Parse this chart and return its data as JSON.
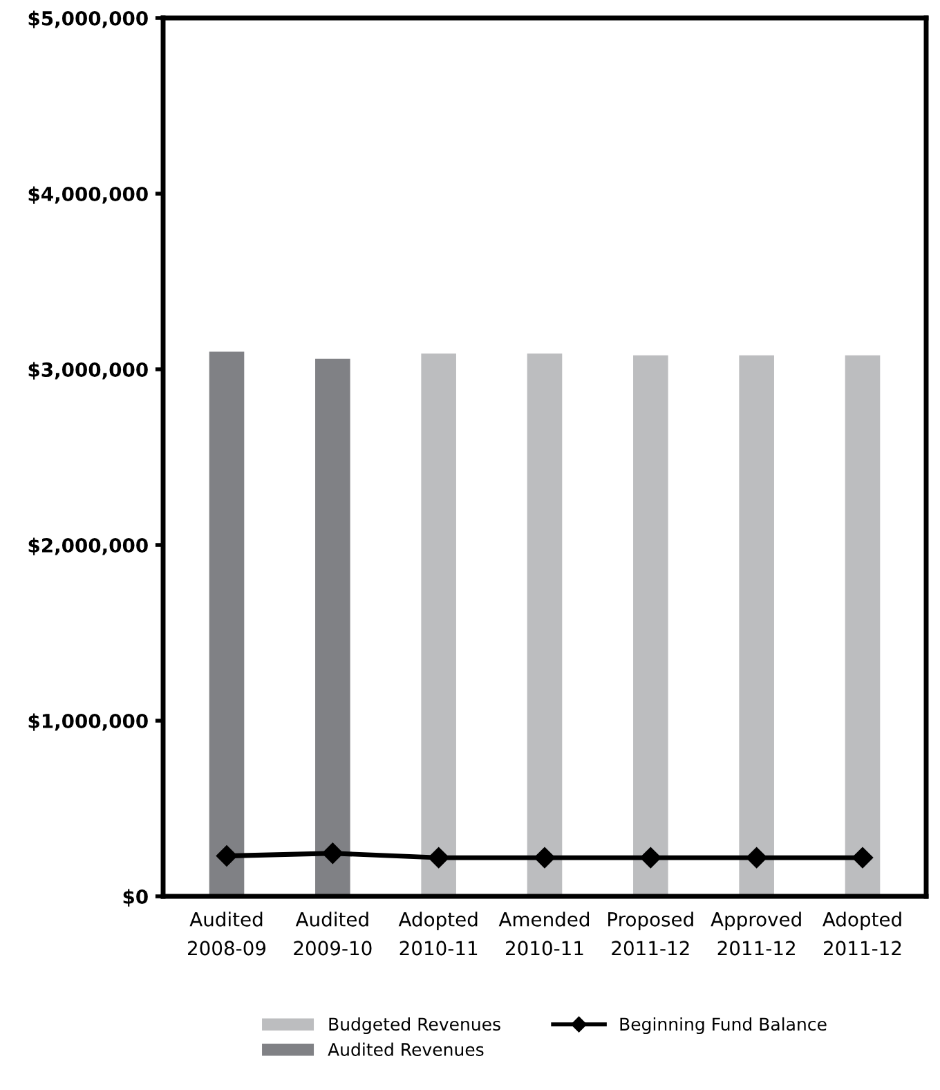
{
  "chart_data": {
    "type": "bar",
    "categories": [
      "Audited\n2008-09",
      "Audited\n2009-10",
      "Adopted\n2010-11",
      "Amended\n2010-11",
      "Proposed\n2011-12",
      "Approved\n2011-12",
      "Adopted\n2011-12"
    ],
    "series": [
      {
        "name": "Budgeted Revenues",
        "color": "#bcbdbf",
        "values": [
          null,
          null,
          3090000,
          3090000,
          3080000,
          3080000,
          3080000
        ]
      },
      {
        "name": "Audited Revenues",
        "color": "#808185",
        "values": [
          3100000,
          3060000,
          null,
          null,
          null,
          null,
          null
        ]
      },
      {
        "name": "Beginning Fund Balance",
        "type": "line",
        "color": "#000000",
        "marker": "diamond",
        "values": [
          230000,
          245000,
          220000,
          220000,
          220000,
          220000,
          220000
        ]
      }
    ],
    "ylim": [
      0,
      5000000
    ],
    "yticks": [
      {
        "value": 0,
        "label": "$0"
      },
      {
        "value": 1000000,
        "label": "$1,000,000"
      },
      {
        "value": 2000000,
        "label": "$2,000,000"
      },
      {
        "value": 3000000,
        "label": "$3,000,000"
      },
      {
        "value": 4000000,
        "label": "$4,000,000"
      },
      {
        "value": 5000000,
        "label": "$5,000,000"
      }
    ],
    "grid": false,
    "legend": "bottom"
  }
}
